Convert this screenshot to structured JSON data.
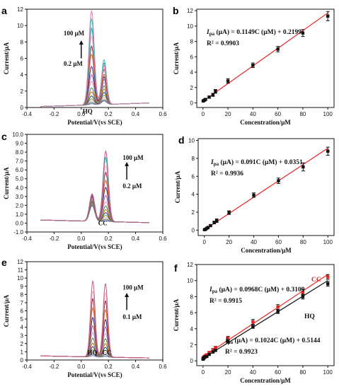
{
  "chart_data": [
    {
      "panel": "a",
      "type": "line",
      "xlabel": "Potential/V(vs SCE)",
      "ylabel": "Current/μA",
      "xlim": [
        -0.4,
        0.6
      ],
      "ylim": [
        0,
        12
      ],
      "xticks": [
        "-0.4",
        "-0.2",
        "0.0",
        "0.2",
        "0.4",
        "0.6"
      ],
      "yticks": [
        "0",
        "2",
        "4",
        "6",
        "8",
        "10",
        "12"
      ],
      "x_range": [
        -0.3,
        0.5
      ],
      "peaks": [
        {
          "x": 0.076,
          "w": 0.028
        },
        {
          "x": 0.168,
          "w": 0.026
        }
      ],
      "baseline": [
        0.12,
        0.55
      ],
      "curves": [
        {
          "p": [
            0.25,
            0.55
          ],
          "color": "#7a5fb5"
        },
        {
          "p": [
            0.4,
            0.7
          ],
          "color": "#3a7d6a"
        },
        {
          "p": [
            0.6,
            0.95
          ],
          "color": "#d6a2c8"
        },
        {
          "p": [
            0.85,
            1.25
          ],
          "color": "#8b8f2a"
        },
        {
          "p": [
            1.2,
            1.6
          ],
          "color": "#1d3c8f"
        },
        {
          "p": [
            1.7,
            2.0
          ],
          "color": "#c46a1d"
        },
        {
          "p": [
            2.2,
            2.4
          ],
          "color": "#5a8a2f"
        },
        {
          "p": [
            3.0,
            2.8
          ],
          "color": "#b8a4d8"
        },
        {
          "p": [
            3.8,
            3.2
          ],
          "color": "#c25a85"
        },
        {
          "p": [
            4.8,
            3.5
          ],
          "color": "#2a2a8f"
        },
        {
          "p": [
            6.3,
            3.8
          ],
          "color": "#d86a1e"
        },
        {
          "p": [
            7.3,
            4.4
          ],
          "color": "#8b1f2b"
        },
        {
          "p": [
            8.5,
            4.6
          ],
          "color": "#e9b8cc"
        },
        {
          "p": [
            9.5,
            5.2
          ],
          "color": "#1fa0b0"
        },
        {
          "p": [
            10.6,
            5.6
          ],
          "color": "#3fb9c2"
        },
        {
          "p": [
            11.6,
            4.9
          ],
          "color": "#d27fa4"
        }
      ],
      "arrow": {
        "x": -0.0,
        "y1": 6.0,
        "y2": 8.2
      },
      "annotations": [
        {
          "text": "100 μM",
          "x": -0.13,
          "y": 8.8
        },
        {
          "text": "0.2 μM",
          "x": -0.13,
          "y": 5.1
        },
        {
          "text": "HQ",
          "x": 0.01,
          "y": -0.75
        }
      ]
    },
    {
      "panel": "b",
      "type": "scatter",
      "xlabel": "Concentration/μM",
      "ylabel": "Current/μA",
      "xlim": [
        -5,
        105
      ],
      "ylim": [
        -0.6,
        12.2
      ],
      "xticks": [
        0,
        20,
        40,
        60,
        80,
        100
      ],
      "yticks": [
        0,
        2,
        4,
        6,
        8,
        10,
        12
      ],
      "x": [
        0.2,
        1,
        2,
        5,
        8,
        10,
        20,
        40,
        60,
        80,
        100
      ],
      "y": [
        0.25,
        0.35,
        0.45,
        0.75,
        1.05,
        1.5,
        2.85,
        4.9,
        7.0,
        9.1,
        11.3
      ],
      "err": [
        0.1,
        0.1,
        0.1,
        0.15,
        0.2,
        0.25,
        0.3,
        0.3,
        0.35,
        0.45,
        0.6
      ],
      "fit": {
        "slope": 0.1149,
        "intercept": 0.2199,
        "color": "#e8231f"
      },
      "eq_text": " (μA) = 0.1149C (μM) + 0.2199",
      "r2_text": "R² = 0.9903"
    },
    {
      "panel": "c",
      "type": "line",
      "xlabel": "Potential/V(vs SCE)",
      "ylabel": "Current/μA",
      "xlim": [
        -0.4,
        0.6
      ],
      "ylim": [
        -1.0,
        10.0
      ],
      "xticks": [
        "-0.4",
        "-0.2",
        "0.0",
        "0.2",
        "0.4",
        "0.6"
      ],
      "yticks": [
        "-1.0",
        "0.0",
        "1.0",
        "2.0",
        "3.0",
        "4.0",
        "5.0",
        "6.0",
        "7.0",
        "8.0",
        "9.0",
        "10.0"
      ],
      "x_range": [
        -0.3,
        0.5
      ],
      "peaks": [
        {
          "x": 0.08,
          "w": 0.027
        },
        {
          "x": 0.18,
          "w": 0.028
        }
      ],
      "baseline": [
        0.35,
        0.05
      ],
      "curves": [
        {
          "p": [
            2.1,
            0.45
          ],
          "color": "#7a5fb5"
        },
        {
          "p": [
            2.2,
            0.6
          ],
          "color": "#3a7d6a"
        },
        {
          "p": [
            2.3,
            0.8
          ],
          "color": "#d6a2c8"
        },
        {
          "p": [
            2.4,
            1.05
          ],
          "color": "#8b8f2a"
        },
        {
          "p": [
            2.55,
            1.35
          ],
          "color": "#1d3c8f"
        },
        {
          "p": [
            2.7,
            1.7
          ],
          "color": "#c46a1d"
        },
        {
          "p": [
            2.85,
            2.1
          ],
          "color": "#5a8a2f"
        },
        {
          "p": [
            2.95,
            2.6
          ],
          "color": "#b8a4d8"
        },
        {
          "p": [
            3.05,
            3.3
          ],
          "color": "#c25a85"
        },
        {
          "p": [
            3.15,
            4.2
          ],
          "color": "#2a2a8f"
        },
        {
          "p": [
            3.25,
            5.0
          ],
          "color": "#d86a1e"
        },
        {
          "p": [
            3.3,
            5.9
          ],
          "color": "#8b1f2b"
        },
        {
          "p": [
            3.35,
            6.7
          ],
          "color": "#e9b8cc"
        },
        {
          "p": [
            3.4,
            7.6
          ],
          "color": "#1fa0b0"
        },
        {
          "p": [
            3.45,
            8.3
          ],
          "color": "#c25a85"
        }
      ],
      "arrow": {
        "x": 0.335,
        "y1": 4.9,
        "y2": 6.9
      },
      "annotations": [
        {
          "text": "100 μM",
          "x": 0.305,
          "y": 7.15
        },
        {
          "text": "0.2 μM",
          "x": 0.305,
          "y": 3.95
        },
        {
          "text": "CC",
          "x": 0.125,
          "y": -0.25
        }
      ]
    },
    {
      "panel": "d",
      "type": "scatter",
      "xlabel": "Concentration/μM",
      "ylabel": "Current/μA",
      "xlim": [
        -5,
        105
      ],
      "ylim": [
        -0.6,
        10.2
      ],
      "xticks": [
        0,
        20,
        40,
        60,
        80,
        100
      ],
      "yticks": [
        0,
        2,
        4,
        6,
        8,
        10
      ],
      "x": [
        0.2,
        1,
        2,
        3,
        5,
        8,
        10,
        20,
        40,
        60,
        80,
        100
      ],
      "y": [
        0.05,
        0.1,
        0.2,
        0.3,
        0.5,
        0.85,
        1.05,
        1.95,
        3.9,
        5.5,
        7.05,
        8.8
      ],
      "err": [
        0.05,
        0.05,
        0.05,
        0.1,
        0.1,
        0.15,
        0.2,
        0.2,
        0.25,
        0.3,
        0.45,
        0.45
      ],
      "fit": {
        "slope": 0.091,
        "intercept": 0.0351,
        "color": "#e8231f"
      },
      "eq_text": " (μA) = 0.091C (μM) + 0.0351",
      "r2_text": "R² = 0.9936"
    },
    {
      "panel": "e",
      "type": "line",
      "xlabel": "Potential/V(vs SCE)",
      "ylabel": "Current/μA",
      "xlim": [
        -0.4,
        0.6
      ],
      "ylim": [
        0,
        12
      ],
      "xticks": [
        "-0.4",
        "-0.2",
        "0.0",
        "0.2",
        "0.4",
        "0.6"
      ],
      "yticks": [
        "0",
        "1",
        "2",
        "3",
        "4",
        "5",
        "6",
        "7",
        "8",
        "9",
        "10",
        "11",
        "12"
      ],
      "x_range": [
        -0.3,
        0.5
      ],
      "peaks": [
        {
          "x": 0.085,
          "w": 0.024
        },
        {
          "x": 0.178,
          "w": 0.024
        }
      ],
      "baseline": [
        0.5,
        0.25
      ],
      "curves": [
        {
          "p": [
            0.65,
            0.6
          ],
          "color": "#7a5fb5"
        },
        {
          "p": [
            0.85,
            0.8
          ],
          "color": "#3a7d6a"
        },
        {
          "p": [
            1.1,
            1.05
          ],
          "color": "#d6a2c8"
        },
        {
          "p": [
            1.4,
            1.35
          ],
          "color": "#8b8f2a"
        },
        {
          "p": [
            1.75,
            1.7
          ],
          "color": "#1d3c8f"
        },
        {
          "p": [
            2.2,
            2.15
          ],
          "color": "#c46a1d"
        },
        {
          "p": [
            2.8,
            2.75
          ],
          "color": "#5a8a2f"
        },
        {
          "p": [
            3.5,
            3.4
          ],
          "color": "#b8a4d8"
        },
        {
          "p": [
            4.3,
            4.2
          ],
          "color": "#c25a85"
        },
        {
          "p": [
            5.3,
            5.1
          ],
          "color": "#2a2a8f"
        },
        {
          "p": [
            6.5,
            6.3
          ],
          "color": "#d86a1e"
        },
        {
          "p": [
            7.6,
            7.4
          ],
          "color": "#8b1f2b"
        },
        {
          "p": [
            8.6,
            8.4
          ],
          "color": "#e9b8cc"
        },
        {
          "p": [
            9.8,
            9.5
          ],
          "color": "#c25a85"
        }
      ],
      "arrow": {
        "x": 0.335,
        "y1": 6.1,
        "y2": 8.2
      },
      "annotations": [
        {
          "text": "100 μM",
          "x": 0.305,
          "y": 8.6
        },
        {
          "text": "0.1 μM",
          "x": 0.305,
          "y": 5.0
        },
        {
          "text": "HQ",
          "x": 0.045,
          "y": 0.65
        },
        {
          "text": "CC",
          "x": 0.155,
          "y": 0.65
        }
      ]
    },
    {
      "panel": "f",
      "type": "scatter",
      "xlabel": "Concentration/μM",
      "ylabel": "Current/μA",
      "xlim": [
        -5,
        105
      ],
      "ylim": [
        -0.6,
        12
      ],
      "xticks": [
        0,
        20,
        40,
        60,
        80,
        100
      ],
      "yticks": [
        0,
        2,
        4,
        6,
        8,
        10,
        12
      ],
      "series": [
        {
          "name": "CC",
          "color": "#e8231f",
          "x": [
            0.1,
            0.5,
            1,
            2,
            3,
            5,
            8,
            10,
            20,
            40,
            60,
            80,
            100
          ],
          "y": [
            0.35,
            0.45,
            0.55,
            0.65,
            0.75,
            1.05,
            1.4,
            1.65,
            2.85,
            4.85,
            6.7,
            8.55,
            10.45
          ],
          "err": [
            0.05,
            0.05,
            0.05,
            0.05,
            0.05,
            0.1,
            0.1,
            0.15,
            0.2,
            0.3,
            0.3,
            0.35,
            0.3
          ],
          "fit": {
            "slope": 0.1024,
            "intercept": 0.5144
          }
        },
        {
          "name": "HQ",
          "color": "#111111",
          "x": [
            0.1,
            0.5,
            1,
            2,
            3,
            5,
            8,
            10,
            20,
            40,
            60,
            80,
            100
          ],
          "y": [
            0.2,
            0.3,
            0.4,
            0.5,
            0.55,
            0.8,
            1.1,
            1.3,
            2.4,
            4.25,
            6.15,
            8.0,
            9.6
          ],
          "err": [
            0.05,
            0.05,
            0.05,
            0.05,
            0.05,
            0.1,
            0.1,
            0.1,
            0.2,
            0.2,
            0.25,
            0.3,
            0.3
          ],
          "fit": {
            "slope": 0.0968,
            "intercept": 0.3109
          }
        }
      ],
      "eq_text_1": " (μA) = 0.0968C (μM) + 0.3109",
      "r2_text_1": "R² = 0.9915",
      "eq_text_2": " (μA) = 0.1024C (μM) + 0.5144",
      "r2_text_2": "R² = 0.9923",
      "legend_cc": "CC",
      "legend_hq": "HQ"
    }
  ],
  "labels": {
    "a": "a",
    "b": "b",
    "c": "c",
    "d": "d",
    "e": "e",
    "f": "f",
    "ipa_i": "I",
    "ipa_sub": "pa"
  }
}
